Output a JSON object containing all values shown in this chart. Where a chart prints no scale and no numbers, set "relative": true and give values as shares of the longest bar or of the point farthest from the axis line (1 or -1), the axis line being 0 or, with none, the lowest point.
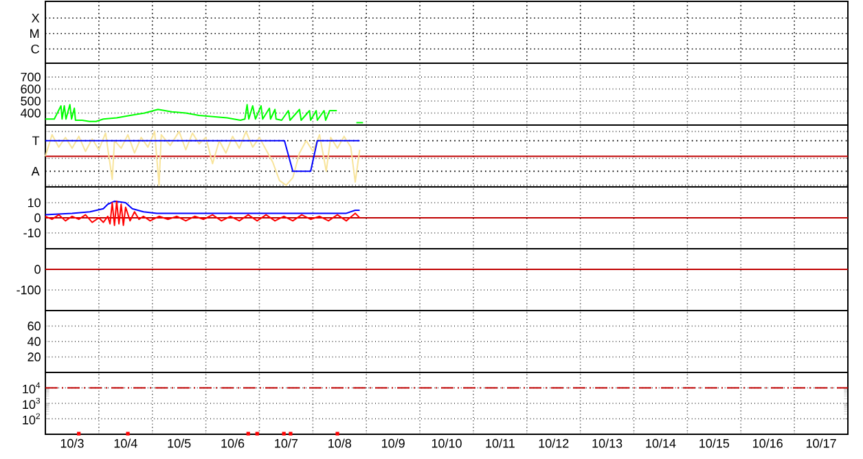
{
  "chart_data": [
    {
      "type": "other",
      "annotations": [
        "X",
        "M",
        "C"
      ]
    },
    {
      "type": "line",
      "xlim": [
        "--10-03",
        "--10-18"
      ],
      "ylim": [
        300,
        815
      ],
      "yticks": [
        400,
        500,
        600,
        700
      ],
      "grid": true,
      "tick_labels": "y",
      "marker": "none",
      "xticks": [
        {
          "value": "--10-04",
          "label": null
        },
        {
          "value": "--10-05",
          "label": null
        },
        {
          "value": "--10-06",
          "label": null
        },
        {
          "value": "--10-07",
          "label": null
        },
        {
          "value": "--10-08",
          "label": null
        },
        {
          "value": "--10-09",
          "label": null
        },
        {
          "value": "--10-10",
          "label": null
        },
        {
          "value": "--10-11",
          "label": null
        },
        {
          "value": "--10-12",
          "label": null
        },
        {
          "value": "--10-13",
          "label": null
        },
        {
          "value": "--10-14",
          "label": null
        },
        {
          "value": "--10-15",
          "label": null
        },
        {
          "value": "--10-16",
          "label": null
        },
        {
          "value": "--10-17",
          "label": null
        }
      ],
      "series": [
        {
          "color": "#00ff00",
          "x": [
            "--10-03T00:00",
            "--10-03T04:00",
            "--10-03T07:00",
            "--10-03T07:30",
            "--10-03T08:30",
            "--10-03T09:15",
            "--10-03T11:00",
            "--10-03T11:45",
            "--10-03T13:00",
            "--10-03T13:30",
            "--10-03T16:30",
            "--10-03T19:45",
            "--10-03T22:45",
            "--10-04T02:00",
            "--10-04T08:00",
            "--10-04T14:00",
            "--10-04T20:30",
            "--10-05T02:30",
            "--10-05T08:45",
            "--10-05T15:00",
            "--10-05T21:00",
            "--10-06T03:15",
            "--10-06T09:30",
            "--10-06T15:30",
            "--10-06T17:30",
            "--10-06T18:30",
            "--10-06T19:15",
            "--10-06T21:00",
            "--10-06T22:15",
            "--10-07T00:45",
            "--10-07T01:30",
            "--10-07T04:30",
            "--10-07T05:00",
            "--10-07T07:00",
            "--10-07T07:30",
            "--10-07T10:00",
            "--10-07T13:00",
            "--10-07T13:45",
            "--10-07T18:00",
            "--10-07T18:45",
            "--10-07T22:30",
            "--10-07T23:00",
            "--10-08T01:30",
            "--10-08T02:00",
            "--10-08T05:00",
            "--10-08T05:45",
            "--10-08T07:30",
            "--10-08T10:45",
            "--10-08T11:15",
            "--10-08T19:30",
            "--10-08T22:30"
          ],
          "values": [
            350,
            350,
            460,
            350,
            460,
            350,
            470,
            350,
            440,
            340,
            340,
            330,
            330,
            350,
            360,
            380,
            400,
            430,
            410,
            400,
            380,
            370,
            360,
            340,
            350,
            470,
            350,
            460,
            350,
            460,
            350,
            440,
            350,
            430,
            350,
            340,
            420,
            340,
            430,
            340,
            420,
            340,
            420,
            340,
            420,
            340,
            420,
            420,
            null,
            320,
            320
          ]
        }
      ]
    },
    {
      "type": "line",
      "relative": true,
      "xlim": [
        "--10-03",
        "--10-18"
      ],
      "grid": true,
      "tick_labels": "y",
      "marker": "none",
      "ref_lines": [
        {
          "axis": "y",
          "value": 0.83,
          "label": "T",
          "color": "#000000",
          "line_style": "dotted"
        },
        {
          "axis": "y",
          "value": 0.26,
          "label": "A",
          "color": "#000000",
          "line_style": "dotted"
        },
        {
          "axis": "y",
          "value": 0.54,
          "color": "#c00000"
        }
      ],
      "xticks": [
        {
          "value": "--10-04",
          "label": null
        },
        {
          "value": "--10-05",
          "label": null
        },
        {
          "value": "--10-06",
          "label": null
        },
        {
          "value": "--10-07",
          "label": null
        },
        {
          "value": "--10-08",
          "label": null
        },
        {
          "value": "--10-09",
          "label": null
        },
        {
          "value": "--10-10",
          "label": null
        },
        {
          "value": "--10-11",
          "label": null
        },
        {
          "value": "--10-12",
          "label": null
        },
        {
          "value": "--10-13",
          "label": null
        },
        {
          "value": "--10-14",
          "label": null
        },
        {
          "value": "--10-15",
          "label": null
        },
        {
          "value": "--10-16",
          "label": null
        },
        {
          "value": "--10-17",
          "label": null
        }
      ],
      "series": [
        {
          "color": "#f8e49a",
          "x": [
            "--10-03T00:00",
            "--10-03T03:00",
            "--10-03T06:00",
            "--10-03T09:00",
            "--10-03T12:00",
            "--10-03T15:00",
            "--10-03T18:00",
            "--10-03T21:00",
            "--10-04T00:00",
            "--10-04T03:00",
            "--10-04T06:00",
            "--10-04T07:00",
            "--10-04T10:00",
            "--10-04T13:00",
            "--10-04T16:00",
            "--10-04T19:00",
            "--10-04T22:00",
            "--10-05T01:00",
            "--10-05T03:00",
            "--10-05T04:00",
            "--10-05T08:00",
            "--10-05T12:00",
            "--10-05T15:00",
            "--10-05T18:00",
            "--10-05T21:00",
            "--10-06T00:00",
            "--10-06T03:00",
            "--10-06T06:00",
            "--10-06T09:00",
            "--10-06T12:00",
            "--10-06T15:00",
            "--10-06T18:00",
            "--10-06T21:00",
            "--10-07T00:00",
            "--10-07T03:00",
            "--10-07T06:00",
            "--10-07T09:00",
            "--10-07T12:00",
            "--10-07T15:00",
            "--10-07T18:00",
            "--10-07T21:00",
            "--10-08T00:00",
            "--10-08T03:00",
            "--10-08T06:00",
            "--10-08T08:00",
            "--10-08T11:00",
            "--10-08T14:00",
            "--10-08T17:00",
            "--10-08T19:00",
            "--10-08T21:00"
          ],
          "values": [
            0.54,
            0.94,
            0.71,
            0.89,
            0.69,
            0.91,
            0.63,
            0.86,
            0.66,
            0.97,
            0.11,
            0.83,
            0.69,
            0.94,
            0.6,
            0.89,
            0.71,
            1,
            0,
            0.94,
            0.74,
            1,
            0.66,
            0.97,
            0.77,
            0.89,
            0.4,
            0.83,
            0.6,
            0.91,
            0.69,
            1,
            0.71,
            0.89,
            0.66,
            0.43,
            0.09,
            0,
            0.14,
            0.6,
            0.83,
            0.63,
            0.94,
            0.26,
            0.89,
            0.69,
            0.91,
            0.71,
            0.06,
            0.66
          ]
        },
        {
          "color": "#0000ff",
          "x": [
            "--10-03T00:00",
            "--10-07T11:15",
            "--10-07T15:00",
            "--10-07T23:00",
            "--10-08T02:00",
            "--10-08T21:00"
          ],
          "values": [
            0.83,
            0.83,
            0.26,
            0.26,
            0.83,
            0.83
          ]
        }
      ]
    },
    {
      "type": "line",
      "xlim": [
        "--10-03",
        "--10-18"
      ],
      "ylim": [
        -20.5,
        20.5
      ],
      "yticks": [
        -10,
        0,
        10
      ],
      "grid": true,
      "tick_labels": "y",
      "marker": "none",
      "ref_lines": [
        {
          "axis": "y",
          "value": 0,
          "color": "#c00000"
        }
      ],
      "xticks": [
        {
          "value": "--10-04",
          "label": null
        },
        {
          "value": "--10-05",
          "label": null
        },
        {
          "value": "--10-06",
          "label": null
        },
        {
          "value": "--10-07",
          "label": null
        },
        {
          "value": "--10-08",
          "label": null
        },
        {
          "value": "--10-09",
          "label": null
        },
        {
          "value": "--10-10",
          "label": null
        },
        {
          "value": "--10-11",
          "label": null
        },
        {
          "value": "--10-12",
          "label": null
        },
        {
          "value": "--10-13",
          "label": null
        },
        {
          "value": "--10-14",
          "label": null
        },
        {
          "value": "--10-15",
          "label": null
        },
        {
          "value": "--10-16",
          "label": null
        },
        {
          "value": "--10-17",
          "label": null
        }
      ],
      "series": [
        {
          "color": "#0000ff",
          "x": [
            "--10-03T00:00",
            "--10-03T12:00",
            "--10-03T20:00",
            "--10-04T02:00",
            "--10-04T04:00",
            "--10-04T07:00",
            "--10-04T12:00",
            "--10-04T15:00",
            "--10-04T20:00",
            "--10-05T02:00",
            "--10-06T00:00",
            "--10-07T00:00",
            "--10-08T00:00",
            "--10-08T15:00",
            "--10-08T19:00",
            "--10-08T21:00"
          ],
          "values": [
            2,
            3,
            4,
            6,
            9,
            11,
            10,
            6,
            4,
            3,
            3,
            3,
            3,
            3,
            5,
            5
          ]
        },
        {
          "color": "#ff0000",
          "x": [
            "--10-03T00:00",
            "--10-03T03:00",
            "--10-03T06:00",
            "--10-03T09:00",
            "--10-03T12:00",
            "--10-03T15:00",
            "--10-03T18:00",
            "--10-03T21:00",
            "--10-04T00:00",
            "--10-04T02:00",
            "--10-04T04:00",
            "--10-04T05:00",
            "--10-04T06:00",
            "--10-04T07:00",
            "--10-04T08:00",
            "--10-04T09:00",
            "--10-04T10:00",
            "--10-04T11:00",
            "--10-04T12:00",
            "--10-04T14:00",
            "--10-04T16:00",
            "--10-04T18:00",
            "--10-04T20:00",
            "--10-04T23:00",
            "--10-05T03:00",
            "--10-05T07:00",
            "--10-05T11:00",
            "--10-05T15:00",
            "--10-05T19:00",
            "--10-05T23:00",
            "--10-06T03:00",
            "--10-06T07:00",
            "--10-06T11:00",
            "--10-06T15:00",
            "--10-06T19:00",
            "--10-06T23:00",
            "--10-07T03:00",
            "--10-07T07:00",
            "--10-07T11:00",
            "--10-07T15:00",
            "--10-07T19:00",
            "--10-07T23:00",
            "--10-08T03:00",
            "--10-08T07:00",
            "--10-08T11:00",
            "--10-08T15:00",
            "--10-08T19:00",
            "--10-08T21:00"
          ],
          "values": [
            1,
            -1,
            2,
            -2,
            1,
            -1,
            2,
            -3,
            0,
            -3,
            1,
            -4,
            10,
            -5,
            11,
            -4,
            9,
            -5,
            7,
            -2,
            4,
            -1,
            1,
            -2,
            1,
            -1,
            1,
            -2,
            1,
            -1,
            2,
            -2,
            1,
            -2,
            2,
            -2,
            2,
            -2,
            1,
            -2,
            2,
            -1,
            1,
            -2,
            2,
            -2,
            3,
            0
          ]
        }
      ]
    },
    {
      "type": "line",
      "xlim": [
        "--10-03",
        "--10-18"
      ],
      "ylim": [
        -200,
        100
      ],
      "yticks": [
        -100,
        0
      ],
      "grid": true,
      "tick_labels": "y",
      "ref_lines": [
        {
          "axis": "y",
          "value": 0,
          "color": "#c00000"
        }
      ],
      "xticks": [
        {
          "value": "--10-04",
          "label": null
        },
        {
          "value": "--10-05",
          "label": null
        },
        {
          "value": "--10-06",
          "label": null
        },
        {
          "value": "--10-07",
          "label": null
        },
        {
          "value": "--10-08",
          "label": null
        },
        {
          "value": "--10-09",
          "label": null
        },
        {
          "value": "--10-10",
          "label": null
        },
        {
          "value": "--10-11",
          "label": null
        },
        {
          "value": "--10-12",
          "label": null
        },
        {
          "value": "--10-13",
          "label": null
        },
        {
          "value": "--10-14",
          "label": null
        },
        {
          "value": "--10-15",
          "label": null
        },
        {
          "value": "--10-16",
          "label": null
        },
        {
          "value": "--10-17",
          "label": null
        }
      ]
    },
    {
      "type": "line",
      "xlim": [
        "--10-03",
        "--10-18"
      ],
      "ylim": [
        0,
        80
      ],
      "yticks": [
        20,
        40,
        60
      ],
      "grid": true,
      "tick_labels": "y",
      "xticks": [
        {
          "value": "--10-04",
          "label": null
        },
        {
          "value": "--10-05",
          "label": null
        },
        {
          "value": "--10-06",
          "label": null
        },
        {
          "value": "--10-07",
          "label": null
        },
        {
          "value": "--10-08",
          "label": null
        },
        {
          "value": "--10-09",
          "label": null
        },
        {
          "value": "--10-10",
          "label": null
        },
        {
          "value": "--10-11",
          "label": null
        },
        {
          "value": "--10-12",
          "label": null
        },
        {
          "value": "--10-13",
          "label": null
        },
        {
          "value": "--10-14",
          "label": null
        },
        {
          "value": "--10-15",
          "label": null
        },
        {
          "value": "--10-16",
          "label": null
        },
        {
          "value": "--10-17",
          "label": null
        }
      ]
    },
    {
      "type": "scatter",
      "xlim": [
        "--10-03",
        "--10-18"
      ],
      "ylim": [
        10,
        100000
      ],
      "log": "y",
      "yticks": [
        {
          "value": 100,
          "label": "10$^{2}$"
        },
        {
          "value": 1000,
          "label": "10$^{3}$"
        },
        {
          "value": 10000,
          "label": "10$^{4}$"
        }
      ],
      "grid": true,
      "marker": "square",
      "ref_lines": [
        {
          "axis": "y",
          "value": 10000,
          "color": "#c00000",
          "line_style": "dashed"
        }
      ],
      "xticks": [
        {
          "value": "--10-03T12:00",
          "label": "10/3"
        },
        {
          "value": "--10-04",
          "label": null
        },
        {
          "value": "--10-04T12:00",
          "label": "10/4"
        },
        {
          "value": "--10-05",
          "label": null
        },
        {
          "value": "--10-05T12:00",
          "label": "10/5"
        },
        {
          "value": "--10-06",
          "label": null
        },
        {
          "value": "--10-06T12:00",
          "label": "10/6"
        },
        {
          "value": "--10-07",
          "label": null
        },
        {
          "value": "--10-07T12:00",
          "label": "10/7"
        },
        {
          "value": "--10-08",
          "label": null
        },
        {
          "value": "--10-08T12:00",
          "label": "10/8"
        },
        {
          "value": "--10-09",
          "label": null
        },
        {
          "value": "--10-09T12:00",
          "label": "10/9"
        },
        {
          "value": "--10-10",
          "label": null
        },
        {
          "value": "--10-10T12:00",
          "label": "10/10"
        },
        {
          "value": "--10-11",
          "label": null
        },
        {
          "value": "--10-11T12:00",
          "label": "10/11"
        },
        {
          "value": "--10-12",
          "label": null
        },
        {
          "value": "--10-12T12:00",
          "label": "10/12"
        },
        {
          "value": "--10-13",
          "label": null
        },
        {
          "value": "--10-13T12:00",
          "label": "10/13"
        },
        {
          "value": "--10-14",
          "label": null
        },
        {
          "value": "--10-14T12:00",
          "label": "10/14"
        },
        {
          "value": "--10-15",
          "label": null
        },
        {
          "value": "--10-15T12:00",
          "label": "10/15"
        },
        {
          "value": "--10-16",
          "label": null
        },
        {
          "value": "--10-16T12:00",
          "label": "10/16"
        },
        {
          "value": "--10-17",
          "label": null
        },
        {
          "value": "--10-17T12:00",
          "label": "10/17"
        }
      ],
      "series": [
        {
          "color": "#ff0000",
          "x": [
            "--10-03T15:00",
            "--10-04T13:00",
            "--10-06T19:00",
            "--10-06T23:00",
            "--10-07T11:00",
            "--10-07T14:00",
            "--10-08T11:00"
          ],
          "values": [
            11,
            11,
            11,
            11,
            11,
            11,
            11
          ]
        }
      ]
    }
  ]
}
